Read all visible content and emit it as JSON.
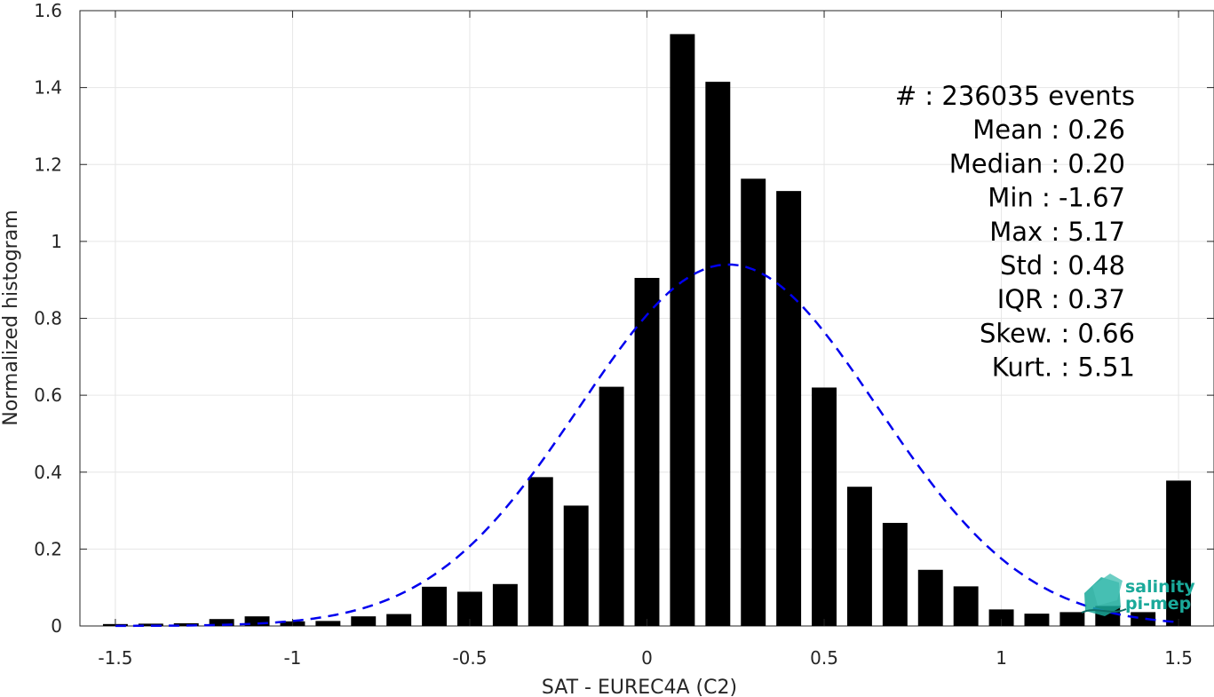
{
  "chart_data": {
    "type": "bar",
    "xlabel": "SAT - EUREC4A (C2)",
    "ylabel": "Normalized histogram",
    "xlim": [
      -1.6,
      1.6
    ],
    "ylim": [
      0,
      1.6
    ],
    "xticks": [
      -1.5,
      -1,
      -0.5,
      0,
      0.5,
      1,
      1.5
    ],
    "xtick_labels": [
      "-1.5",
      "-1",
      "-0.5",
      "0",
      "0.5",
      "1",
      "1.5"
    ],
    "yticks": [
      0,
      0.2,
      0.4,
      0.6,
      0.8,
      1.0,
      1.2,
      1.4,
      1.6
    ],
    "ytick_labels": [
      "0",
      "0.2",
      "0.4",
      "0.6",
      "0.8",
      "1",
      "1.2",
      "1.4",
      "1.6"
    ],
    "grid": true,
    "bar_color": "#000000",
    "bar_width": 0.07,
    "series": [
      {
        "x": [
          -1.5,
          -1.4,
          -1.3,
          -1.2,
          -1.1,
          -1.0,
          -0.9,
          -0.8,
          -0.7,
          -0.6,
          -0.5,
          -0.4,
          -0.3,
          -0.2,
          -0.1,
          0.0,
          0.1,
          0.2,
          0.3,
          0.4,
          0.5,
          0.6,
          0.7,
          0.8,
          0.9,
          1.0,
          1.1,
          1.2,
          1.3,
          1.4,
          1.5
        ],
        "values": [
          0.005,
          0.006,
          0.007,
          0.018,
          0.025,
          0.012,
          0.013,
          0.025,
          0.031,
          0.102,
          0.089,
          0.109,
          0.387,
          0.313,
          0.622,
          0.905,
          1.539,
          1.415,
          1.163,
          1.131,
          0.62,
          0.362,
          0.268,
          0.146,
          0.103,
          0.043,
          0.032,
          0.036,
          0.052,
          0.036,
          0.378
        ]
      }
    ],
    "fit_curve": {
      "style": "dashed",
      "color": "#0000ee",
      "description_values": {
        "mean": 0.23,
        "std": 0.42,
        "peak": 0.94
      }
    },
    "annotation_lines": [
      "#  : 236035 events",
      "Mean : 0.26",
      "Median : 0.20",
      "Min : -1.67",
      "Max : 5.17",
      "Std : 0.48",
      "IQR : 0.37",
      "Skew. : 0.66",
      "Kurt. : 5.51"
    ]
  },
  "logo": {
    "line1": "salinity",
    "line2": "pi-mep",
    "color": "#1aa99a"
  }
}
